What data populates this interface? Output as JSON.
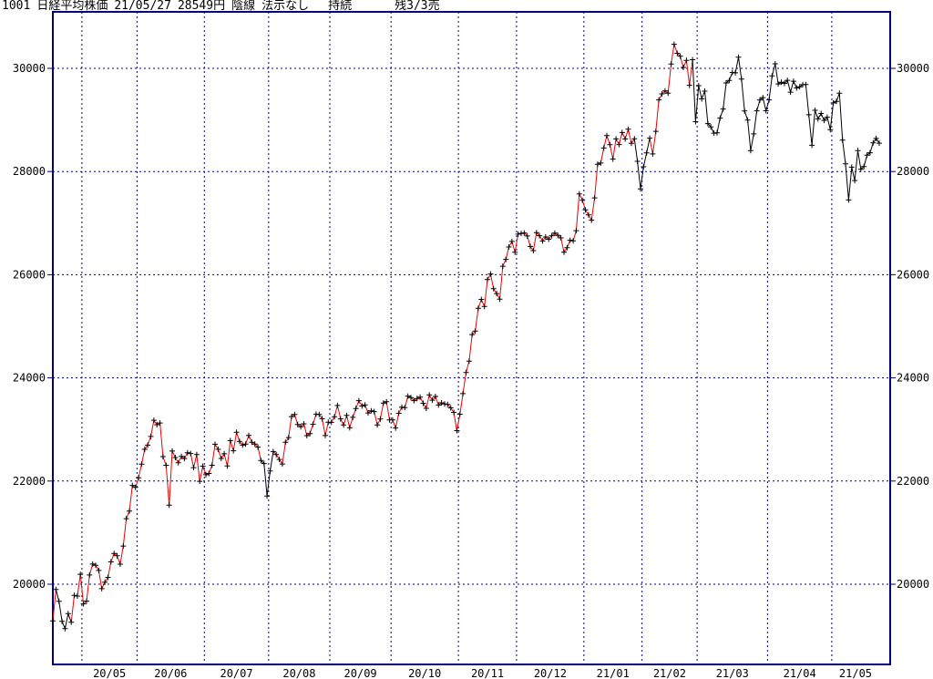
{
  "header": {
    "code": "1001",
    "name": "日経平均株価",
    "date": "21/05/27",
    "price": "28549円",
    "candle_type": "陰線",
    "display_mode": "法示なし",
    "signal_status": "持続",
    "signal_remaining": "残3/3売"
  },
  "chart_data": {
    "type": "line",
    "title": "1001 日経平均株価 21/05/27 28549円 陰線 法示なし 持続 残3/3売",
    "xlabel": "",
    "ylabel": "",
    "ylim": [
      18400,
      31100
    ],
    "yticks": [
      20000,
      22000,
      24000,
      26000,
      28000,
      30000
    ],
    "grid": "dashed",
    "grid_color": "#000080",
    "frame_color": "#000080",
    "trend_up_color": "#ee0000",
    "trend_down_color": "#000000",
    "marker": "plus",
    "marker_color": "#000000",
    "months": [
      {
        "label": "",
        "days": 10
      },
      {
        "label": "20/05",
        "days": 18
      },
      {
        "label": "20/06",
        "days": 22
      },
      {
        "label": "20/07",
        "days": 21
      },
      {
        "label": "20/08",
        "days": 20
      },
      {
        "label": "20/09",
        "days": 20
      },
      {
        "label": "20/10",
        "days": 22
      },
      {
        "label": "20/11",
        "days": 19
      },
      {
        "label": "20/12",
        "days": 22
      },
      {
        "label": "21/01",
        "days": 19
      },
      {
        "label": "21/02",
        "days": 18
      },
      {
        "label": "21/03",
        "days": 23
      },
      {
        "label": "21/04",
        "days": 21
      },
      {
        "label": "21/05",
        "days": 16
      }
    ],
    "values": [
      19290,
      19897,
      19669,
      19280,
      19137,
      19429,
      19262,
      19783,
      19771,
      20193,
      19619,
      19674,
      20179,
      20390,
      20366,
      20267,
      19914,
      20037,
      20133,
      20433,
      20595,
      20552,
      20388,
      20741,
      21271,
      21419,
      21916,
      21877,
      22062,
      22326,
      22614,
      22696,
      22864,
      23178,
      23091,
      23125,
      22473,
      22305,
      21531,
      22582,
      22455,
      22355,
      22479,
      22437,
      22549,
      22534,
      22260,
      22512,
      21995,
      22288,
      22122,
      22146,
      22306,
      22714,
      22615,
      22439,
      22529,
      22291,
      22785,
      22587,
      22946,
      22770,
      22696,
      22717,
      22884,
      22752,
      22715,
      22657,
      22397,
      22339,
      21710,
      22195,
      22573,
      22514,
      22418,
      22330,
      22750,
      22843,
      23249,
      23289,
      23096,
      23051,
      23110,
      22880,
      22920,
      23100,
      23296,
      23290,
      23208,
      22882,
      23139,
      23138,
      23247,
      23465,
      23205,
      23089,
      23274,
      23032,
      23235,
      23406,
      23559,
      23454,
      23475,
      23319,
      23360,
      23346,
      23087,
      23204,
      23511,
      23539,
      23185,
      23185,
      23029,
      23312,
      23433,
      23422,
      23647,
      23619,
      23558,
      23601,
      23626,
      23507,
      23410,
      23671,
      23567,
      23639,
      23474,
      23516,
      23494,
      23485,
      23418,
      23331,
      22977,
      23295,
      23695,
      24105,
      24325,
      24839,
      24906,
      25349,
      25521,
      25385,
      25907,
      26014,
      25728,
      25634,
      25527,
      26165,
      26297,
      26537,
      26645,
      26434,
      26787,
      26800,
      26809,
      26751,
      26547,
      26467,
      26817,
      26756,
      26653,
      26732,
      26688,
      26757,
      26806,
      26763,
      26714,
      26436,
      26524,
      26668,
      26657,
      26854,
      27568,
      27444,
      27258,
      27159,
      27056,
      27490,
      28139,
      28164,
      28456,
      28698,
      28519,
      28242,
      28633,
      28523,
      28757,
      28631,
      28822,
      28546,
      28635,
      28197,
      27663,
      28091,
      28362,
      28646,
      28341,
      28779,
      29388,
      29505,
      29563,
      29520,
      30084,
      30467,
      30292,
      30236,
      30018,
      30156,
      29671,
      30168,
      28966,
      29664,
      29408,
      29559,
      28930,
      28864,
      28743,
      28751,
      29036,
      29212,
      29718,
      29767,
      29921,
      29914,
      30217,
      29792,
      29174,
      28996,
      28406,
      28730,
      29176,
      29385,
      29433,
      29179,
      29389,
      29854,
      30089,
      29697,
      29731,
      29708,
      29768,
      29539,
      29751,
      29621,
      29642,
      29683,
      29685,
      29100,
      28508,
      29188,
      29020,
      29126,
      28992,
      29053,
      28813,
      29331,
      29358,
      29518,
      28609,
      28148,
      27448,
      28084,
      27825,
      28406,
      28044,
      28098,
      28318,
      28364,
      28554,
      28642,
      28549
    ],
    "black_segment_ranges": [
      [
        1,
        6
      ],
      [
        68,
        72
      ],
      [
        190,
        195
      ],
      [
        209,
        270
      ]
    ]
  }
}
